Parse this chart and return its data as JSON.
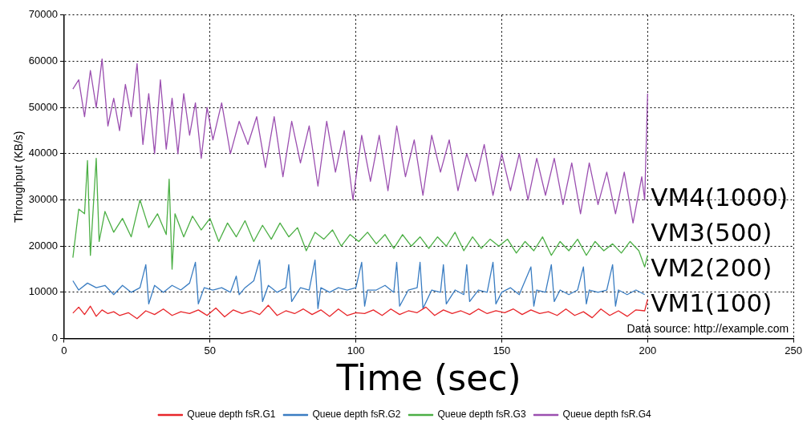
{
  "chart_data": {
    "type": "line",
    "xlabel": "Time (sec)",
    "ylabel": "Throughput (KB/s)",
    "xlim": [
      0,
      250
    ],
    "xticks": [
      0,
      50,
      100,
      150,
      200,
      250
    ],
    "ylim": [
      0,
      70000
    ],
    "yticks": [
      0,
      10000,
      20000,
      30000,
      40000,
      50000,
      60000,
      70000
    ],
    "grid": true,
    "legend": "bottom",
    "marker": "none",
    "line_style": "solid",
    "series": [
      {
        "name": "Queue depth fsR.G1",
        "color": "#e8262a",
        "x": [
          3,
          5,
          7,
          9,
          11,
          13,
          15,
          17,
          19,
          22,
          25,
          28,
          31,
          34,
          37,
          40,
          43,
          46,
          49,
          52,
          55,
          58,
          61,
          64,
          67,
          70,
          73,
          76,
          79,
          82,
          85,
          88,
          91,
          94,
          97,
          100,
          103,
          106,
          109,
          112,
          115,
          118,
          121,
          124,
          127,
          130,
          133,
          136,
          139,
          142,
          145,
          148,
          151,
          154,
          157,
          160,
          163,
          166,
          169,
          172,
          175,
          178,
          181,
          184,
          187,
          190,
          193,
          196,
          199,
          200
        ],
        "values": [
          5500,
          6800,
          5200,
          7000,
          4800,
          6200,
          5400,
          5800,
          5000,
          5600,
          4300,
          6000,
          5200,
          6400,
          5000,
          5800,
          5400,
          6200,
          5000,
          6600,
          4700,
          6200,
          5400,
          6000,
          5200,
          7200,
          5000,
          6000,
          5400,
          6400,
          5200,
          6200,
          4800,
          6400,
          5000,
          5600,
          5400,
          6200,
          5000,
          6400,
          5200,
          6000,
          5600,
          6800,
          5000,
          6200,
          5400,
          6000,
          5200,
          6400,
          5400,
          6000,
          5600,
          6400,
          5200,
          6200,
          5400,
          5800,
          5000,
          6400,
          5000,
          5800,
          4500,
          6400,
          5000,
          6000,
          4800,
          6200,
          6000,
          8500
        ]
      },
      {
        "name": "Queue depth fsR.G2",
        "color": "#3a7dc2",
        "x": [
          3,
          5,
          8,
          11,
          14,
          17,
          20,
          23,
          26,
          28,
          29,
          31,
          34,
          37,
          40,
          43,
          45,
          46,
          48,
          51,
          54,
          57,
          59,
          60,
          62,
          65,
          67,
          68,
          70,
          73,
          76,
          77,
          78,
          81,
          84,
          86,
          87,
          88,
          91,
          94,
          97,
          100,
          102,
          103,
          104,
          107,
          110,
          113,
          114,
          115,
          118,
          121,
          122,
          123,
          126,
          129,
          130,
          131,
          134,
          137,
          138,
          139,
          142,
          145,
          147,
          148,
          150,
          153,
          156,
          160,
          161,
          162,
          165,
          167,
          168,
          170,
          173,
          176,
          178,
          179,
          180,
          183,
          186,
          188,
          189,
          190,
          193,
          196,
          199
        ],
        "values": [
          12500,
          10500,
          12000,
          11000,
          11500,
          9500,
          11500,
          10000,
          11000,
          16000,
          7500,
          11500,
          10000,
          11500,
          10500,
          12000,
          16500,
          7500,
          11000,
          10500,
          11000,
          10000,
          13500,
          9500,
          11000,
          12500,
          17000,
          8000,
          11500,
          10000,
          11000,
          16000,
          8000,
          11000,
          10500,
          17000,
          6500,
          11000,
          10000,
          11000,
          10500,
          11000,
          16500,
          7000,
          10500,
          10500,
          11500,
          10000,
          16500,
          7000,
          10500,
          11000,
          16500,
          6500,
          10500,
          10000,
          16000,
          7500,
          10500,
          9500,
          16000,
          8000,
          10500,
          10000,
          16500,
          7500,
          10000,
          11000,
          9500,
          15500,
          7000,
          10500,
          10000,
          16000,
          8000,
          10500,
          9500,
          10500,
          15500,
          7500,
          10500,
          10000,
          10500,
          16000,
          7000,
          10500,
          9500,
          10500,
          9500
        ]
      },
      {
        "name": "Queue depth fsR.G3",
        "color": "#4caf45",
        "x": [
          3,
          5,
          7,
          8,
          9,
          11,
          12,
          14,
          17,
          20,
          23,
          26,
          29,
          32,
          35,
          36,
          37,
          38,
          41,
          44,
          47,
          50,
          53,
          56,
          59,
          62,
          65,
          68,
          71,
          74,
          77,
          80,
          83,
          86,
          89,
          92,
          95,
          98,
          101,
          104,
          107,
          110,
          113,
          116,
          119,
          122,
          125,
          128,
          131,
          134,
          137,
          140,
          143,
          146,
          149,
          152,
          155,
          158,
          161,
          164,
          167,
          170,
          173,
          176,
          179,
          182,
          185,
          188,
          191,
          194,
          197,
          199,
          200
        ],
        "values": [
          17500,
          28000,
          27000,
          38500,
          18000,
          39000,
          21000,
          27500,
          23000,
          26000,
          22000,
          30000,
          24000,
          27000,
          22500,
          34500,
          15000,
          27000,
          22000,
          26500,
          23500,
          26000,
          21000,
          25000,
          22000,
          25500,
          21000,
          24500,
          21500,
          25000,
          22000,
          24000,
          19000,
          23000,
          21500,
          23500,
          20000,
          22500,
          21000,
          23000,
          20500,
          22500,
          19500,
          22500,
          20000,
          22000,
          19500,
          22000,
          20000,
          23000,
          19000,
          22000,
          19500,
          21500,
          20000,
          21500,
          18500,
          21000,
          19000,
          22000,
          18000,
          21000,
          19000,
          21500,
          18000,
          21000,
          19000,
          20500,
          18500,
          21000,
          19000,
          15500,
          18000
        ]
      },
      {
        "name": "Queue depth fsR.G4",
        "color": "#9b4fb0",
        "x": [
          3,
          5,
          7,
          9,
          11,
          13,
          15,
          17,
          19,
          21,
          23,
          25,
          27,
          29,
          31,
          33,
          35,
          37,
          39,
          41,
          43,
          45,
          47,
          49,
          51,
          54,
          57,
          60,
          63,
          66,
          69,
          72,
          75,
          78,
          81,
          84,
          87,
          90,
          93,
          96,
          99,
          102,
          105,
          108,
          111,
          114,
          117,
          120,
          123,
          126,
          129,
          132,
          135,
          138,
          141,
          144,
          147,
          150,
          153,
          156,
          159,
          162,
          165,
          168,
          171,
          174,
          177,
          180,
          183,
          186,
          189,
          192,
          195,
          198,
          199,
          200
        ],
        "values": [
          54000,
          56000,
          48000,
          58000,
          50000,
          60500,
          46000,
          52000,
          45000,
          55000,
          48000,
          59500,
          42000,
          53000,
          40000,
          56000,
          41000,
          52000,
          40000,
          53000,
          44000,
          51000,
          39000,
          50000,
          43000,
          51000,
          40000,
          47000,
          42000,
          48000,
          37000,
          48000,
          35000,
          47000,
          38000,
          46000,
          33000,
          47000,
          36000,
          45000,
          30000,
          44000,
          34000,
          44000,
          32000,
          46000,
          35000,
          43000,
          31000,
          44000,
          36000,
          43000,
          32000,
          40000,
          34000,
          42000,
          31000,
          40000,
          32000,
          40000,
          30000,
          39000,
          31000,
          39000,
          29000,
          38000,
          27000,
          38000,
          29000,
          36000,
          27000,
          36000,
          25000,
          35000,
          30000,
          53000
        ]
      }
    ],
    "annotations": [
      "VM4(1000)",
      "VM3(500)",
      "VM2(200)",
      "VM1(100)",
      "Data source: http://example.com"
    ]
  }
}
